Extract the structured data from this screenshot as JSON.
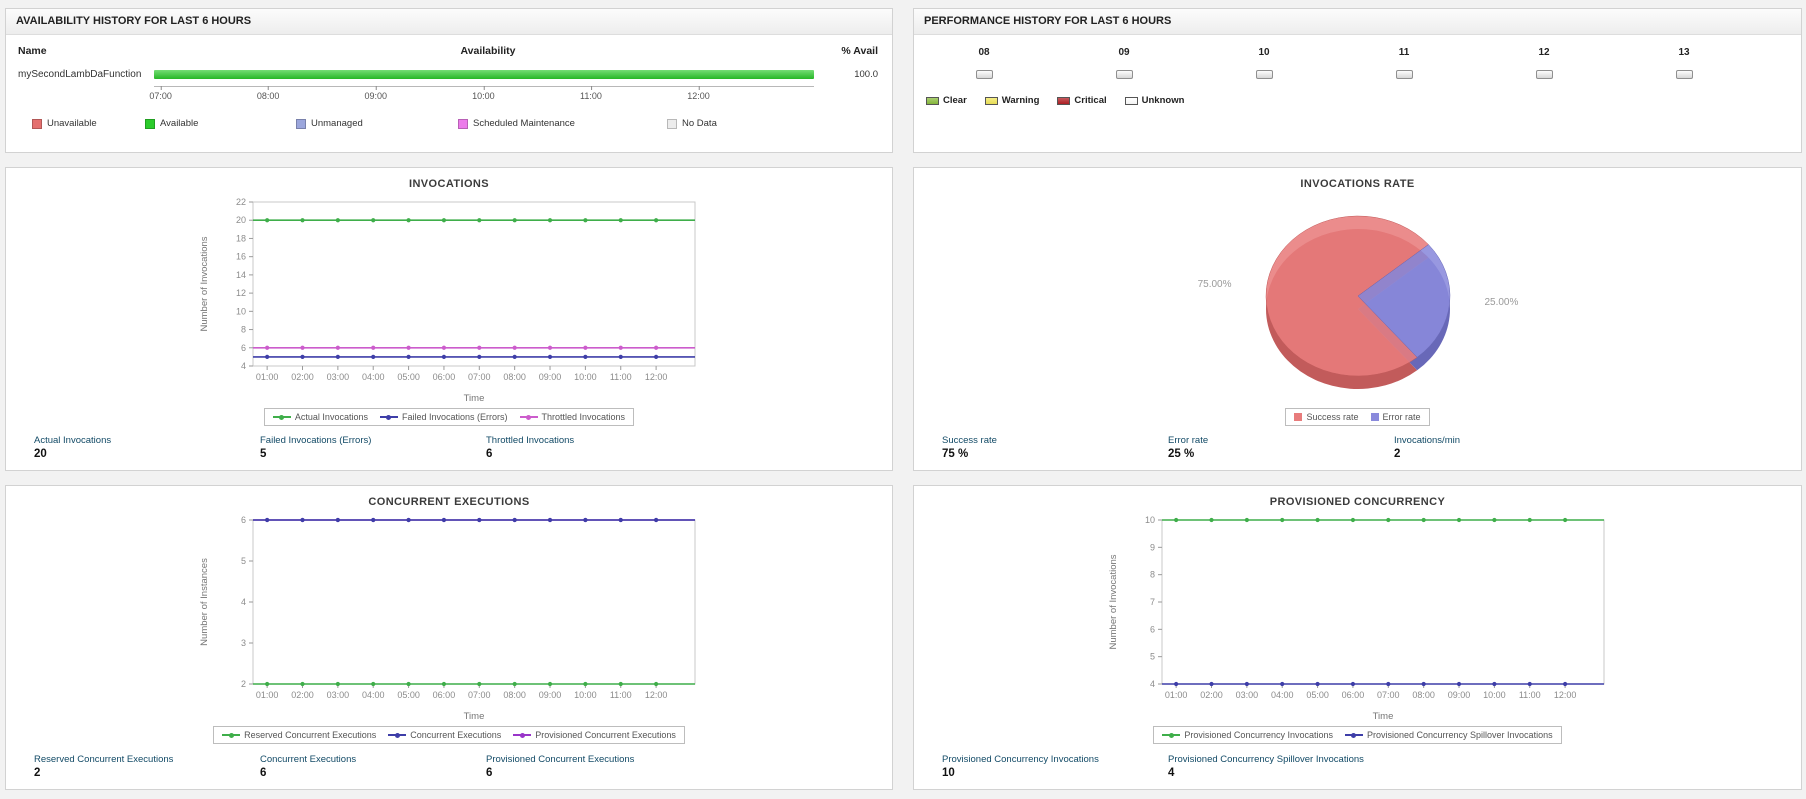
{
  "availability_panel": {
    "title": "AVAILABILITY HISTORY FOR LAST 6 HOURS",
    "col_name": "Name",
    "col_availability": "Availability",
    "col_percent": "% Avail",
    "monitor_name": "mySecondLambDaFunction",
    "percent_value": "100.0",
    "bar_color": "#2bcb2b",
    "time_ticks": [
      "07:00",
      "08:00",
      "09:00",
      "10:00",
      "11:00",
      "12:00"
    ],
    "legend": [
      {
        "label": "Unavailable",
        "color": "#e4706f"
      },
      {
        "label": "Available",
        "color": "#2bcb2b"
      },
      {
        "label": "Unmanaged",
        "color": "#9ba6dc"
      },
      {
        "label": "Scheduled Maintenance",
        "color": "#ec7bea"
      },
      {
        "label": "No Data",
        "color": "#ececec"
      }
    ]
  },
  "performance_panel": {
    "title": "PERFORMANCE HISTORY FOR LAST 6 HOURS",
    "hours": [
      "08",
      "09",
      "10",
      "11",
      "12",
      "13"
    ],
    "legend": [
      {
        "label": "Clear",
        "color": "#8cbf3f"
      },
      {
        "label": "Warning",
        "color": "#f2e75b"
      },
      {
        "label": "Critical",
        "color": "#b42025"
      },
      {
        "label": "Unknown",
        "color": "#ffffff"
      }
    ]
  },
  "invocations_panel": {
    "stats": [
      {
        "label": "Actual Invocations",
        "value": "20"
      },
      {
        "label": "Failed Invocations (Errors)",
        "value": "5"
      },
      {
        "label": "Throttled Invocations",
        "value": "6"
      }
    ]
  },
  "invocations_rate_panel": {
    "stats": [
      {
        "label": "Success rate",
        "value": "75 %"
      },
      {
        "label": "Error rate",
        "value": "25 %"
      },
      {
        "label": "Invocations/min",
        "value": "2"
      }
    ]
  },
  "concurrent_panel": {
    "stats": [
      {
        "label": "Reserved Concurrent Executions",
        "value": "2"
      },
      {
        "label": "Concurrent Executions",
        "value": "6"
      },
      {
        "label": "Provisioned Concurrent Executions",
        "value": "6"
      }
    ]
  },
  "provisioned_panel": {
    "stats": [
      {
        "label": "Provisioned Concurrency Invocations",
        "value": "10"
      },
      {
        "label": "Provisioned Concurrency Spillover Invocations",
        "value": "4"
      }
    ]
  },
  "chart_data": [
    {
      "type": "line",
      "title": "INVOCATIONS",
      "xlabel": "Time",
      "ylabel": "Number of Invocations",
      "x": [
        "01:00",
        "02:00",
        "03:00",
        "04:00",
        "05:00",
        "06:00",
        "07:00",
        "08:00",
        "09:00",
        "10:00",
        "11:00",
        "12:00"
      ],
      "ylim": [
        4,
        22
      ],
      "yticks": [
        4,
        6,
        8,
        10,
        12,
        14,
        16,
        18,
        20,
        22
      ],
      "grid": false,
      "legend_position": "bottom",
      "series": [
        {
          "name": "Actual Invocations",
          "color": "#3fae4a",
          "values": [
            20,
            20,
            20,
            20,
            20,
            20,
            20,
            20,
            20,
            20,
            20,
            20
          ]
        },
        {
          "name": "Failed Invocations (Errors)",
          "color": "#3e3ea8",
          "values": [
            5,
            5,
            5,
            5,
            5,
            5,
            5,
            5,
            5,
            5,
            5,
            5
          ]
        },
        {
          "name": "Throttled Invocations",
          "color": "#cc5ccc",
          "values": [
            6,
            6,
            6,
            6,
            6,
            6,
            6,
            6,
            6,
            6,
            6,
            6
          ]
        }
      ]
    },
    {
      "type": "pie",
      "title": "INVOCATIONS RATE",
      "start_angle": 40,
      "legend_position": "bottom",
      "slices": [
        {
          "name": "Success rate",
          "value": 75,
          "label": "75.00%",
          "color": "#e87c7c",
          "side_color": "#c25b5b"
        },
        {
          "name": "Error rate",
          "value": 25,
          "label": "25.00%",
          "color": "#8a8adc",
          "side_color": "#6868b8"
        }
      ]
    },
    {
      "type": "line",
      "title": "CONCURRENT EXECUTIONS",
      "xlabel": "Time",
      "ylabel": "Number of Instances",
      "x": [
        "01:00",
        "02:00",
        "03:00",
        "04:00",
        "05:00",
        "06:00",
        "07:00",
        "08:00",
        "09:00",
        "10:00",
        "11:00",
        "12:00"
      ],
      "ylim": [
        2,
        6
      ],
      "yticks": [
        2,
        3,
        4,
        5,
        6
      ],
      "grid": false,
      "legend_position": "bottom",
      "series": [
        {
          "name": "Reserved Concurrent Executions",
          "color": "#3fae4a",
          "values": [
            2,
            2,
            2,
            2,
            2,
            2,
            2,
            2,
            2,
            2,
            2,
            2
          ]
        },
        {
          "name": "Concurrent Executions",
          "color": "#3e3ea8",
          "values": [
            6,
            6,
            6,
            6,
            6,
            6,
            6,
            6,
            6,
            6,
            6,
            6
          ]
        },
        {
          "name": "Provisioned Concurrent Executions",
          "color": "#9935c9",
          "values": [
            6,
            6,
            6,
            6,
            6,
            6,
            6,
            6,
            6,
            6,
            6,
            6
          ]
        }
      ]
    },
    {
      "type": "line",
      "title": "PROVISIONED CONCURRENCY",
      "xlabel": "Time",
      "ylabel": "Number of Invocations",
      "x": [
        "01:00",
        "02:00",
        "03:00",
        "04:00",
        "05:00",
        "06:00",
        "07:00",
        "08:00",
        "09:00",
        "10:00",
        "11:00",
        "12:00"
      ],
      "ylim": [
        4,
        10
      ],
      "yticks": [
        4,
        5,
        6,
        7,
        8,
        9,
        10
      ],
      "grid": false,
      "legend_position": "bottom",
      "series": [
        {
          "name": "Provisioned Concurrency Invocations",
          "color": "#3fae4a",
          "values": [
            10,
            10,
            10,
            10,
            10,
            10,
            10,
            10,
            10,
            10,
            10,
            10
          ]
        },
        {
          "name": "Provisioned Concurrency Spillover Invocations",
          "color": "#3e3ea8",
          "values": [
            4,
            4,
            4,
            4,
            4,
            4,
            4,
            4,
            4,
            4,
            4,
            4
          ]
        }
      ]
    }
  ]
}
